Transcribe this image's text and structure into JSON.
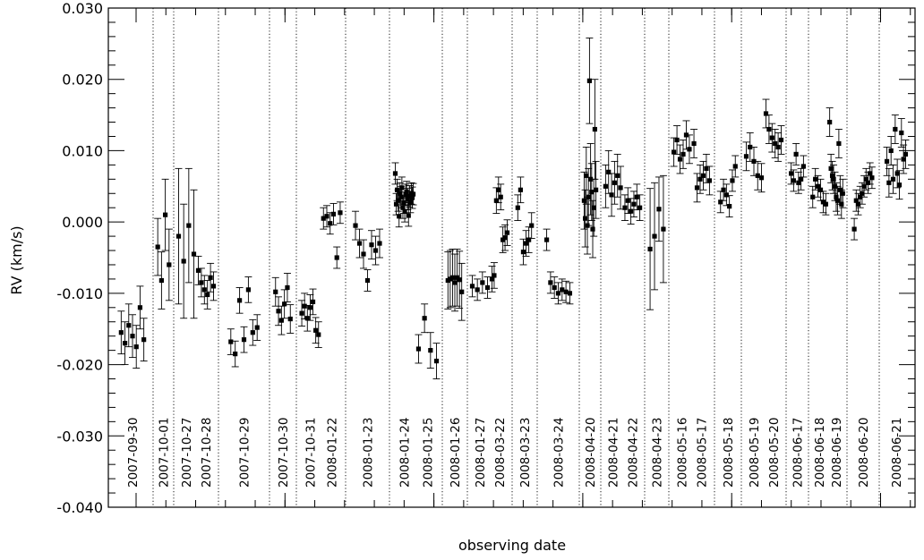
{
  "chart_data": {
    "type": "scatter",
    "xlabel": "observing date",
    "ylabel": "RV (km/s)",
    "ylim": [
      -0.04,
      0.03
    ],
    "yticks": [
      "0.030",
      "0.020",
      "0.010",
      "0.000",
      "-0.010",
      "-0.020",
      "-0.030",
      "-0.040"
    ],
    "error_bars": true,
    "grid": false,
    "nights": [
      {
        "date": "2007-09-30",
        "points": [
          [
            -0.0155,
            0.003
          ],
          [
            -0.017,
            0.003
          ],
          [
            -0.0145,
            0.003
          ],
          [
            -0.016,
            0.003
          ],
          [
            -0.0175,
            0.003
          ],
          [
            -0.012,
            0.003
          ],
          [
            -0.0165,
            0.003
          ]
        ]
      },
      {
        "date": "2007-10-01",
        "points": [
          [
            -0.0035,
            0.004
          ],
          [
            -0.0082,
            0.004
          ],
          [
            0.001,
            0.005
          ],
          [
            -0.006,
            0.005
          ]
        ]
      },
      {
        "date": "2007-10-27",
        "points": [
          [
            -0.002,
            0.0095
          ],
          [
            -0.0055,
            0.008
          ],
          [
            -0.0005,
            0.008
          ],
          [
            -0.0045,
            0.009
          ]
        ]
      },
      {
        "date": "2007-10-28",
        "points": [
          [
            -0.0068,
            0.002
          ],
          [
            -0.0085,
            0.002
          ],
          [
            -0.0095,
            0.002
          ],
          [
            -0.0102,
            0.002
          ],
          [
            -0.0078,
            0.002
          ],
          [
            -0.009,
            0.002
          ]
        ]
      },
      {
        "date": "2007-10-29",
        "points": [
          [
            -0.0168,
            0.0018
          ],
          [
            -0.0185,
            0.0018
          ],
          [
            -0.011,
            0.0018
          ],
          [
            -0.0165,
            0.0018
          ],
          [
            -0.0095,
            0.0018
          ],
          [
            -0.0155,
            0.0018
          ],
          [
            -0.0148,
            0.0018
          ]
        ]
      },
      {
        "date": "2007-10-30",
        "points": [
          [
            -0.0098,
            0.002
          ],
          [
            -0.0125,
            0.002
          ],
          [
            -0.0138,
            0.002
          ],
          [
            -0.0115,
            0.002
          ],
          [
            -0.0092,
            0.002
          ],
          [
            -0.0136,
            0.002
          ]
        ]
      },
      {
        "date": "2007-10-31",
        "points": [
          [
            -0.0128,
            0.0018
          ],
          [
            -0.0118,
            0.0018
          ],
          [
            -0.0135,
            0.0018
          ],
          [
            -0.012,
            0.0018
          ],
          [
            -0.0112,
            0.0018
          ],
          [
            -0.0152,
            0.0018
          ],
          [
            -0.0158,
            0.0018
          ]
        ]
      },
      {
        "date": "2008-01-22",
        "points": [
          [
            0.0005,
            0.0015
          ],
          [
            0.0008,
            0.0015
          ],
          [
            -0.0002,
            0.0015
          ],
          [
            0.0011,
            0.0015
          ],
          [
            -0.005,
            0.0015
          ],
          [
            0.0013,
            0.0015
          ]
        ]
      },
      {
        "date": "2008-01-23",
        "points": [
          [
            -0.0005,
            0.002
          ],
          [
            -0.003,
            0.002
          ],
          [
            -0.0045,
            0.002
          ],
          [
            -0.0082,
            0.0015
          ],
          [
            -0.0032,
            0.002
          ],
          [
            -0.004,
            0.002
          ],
          [
            -0.003,
            0.002
          ]
        ]
      },
      {
        "date": "2008-01-24",
        "points": [
          [
            0.0068,
            0.0015
          ],
          [
            0.0025,
            0.0015
          ],
          [
            0.0045,
            0.0015
          ],
          [
            0.003,
            0.0015
          ],
          [
            0.0008,
            0.0015
          ],
          [
            0.004,
            0.0015
          ],
          [
            0.0035,
            0.0015
          ],
          [
            0.0048,
            0.0015
          ],
          [
            0.002,
            0.0015
          ],
          [
            0.0027,
            0.0015
          ],
          [
            0.0015,
            0.0015
          ],
          [
            0.0038,
            0.0015
          ],
          [
            0.0042,
            0.0015
          ],
          [
            0.0032,
            0.0015
          ],
          [
            0.0009,
            0.0015
          ],
          [
            0.0036,
            0.0015
          ],
          [
            0.0028,
            0.0015
          ],
          [
            0.004,
            0.0015
          ],
          [
            0.0034,
            0.0015
          ],
          [
            0.0039,
            0.0015
          ]
        ]
      },
      {
        "date": "2008-01-25",
        "points": [
          [
            -0.0178,
            0.002
          ],
          [
            -0.0135,
            0.002
          ],
          [
            -0.018,
            0.0025
          ],
          [
            -0.0195,
            0.0025
          ]
        ]
      },
      {
        "date": "2008-01-26",
        "points": [
          [
            -0.0082,
            0.004
          ],
          [
            -0.008,
            0.004
          ],
          [
            -0.0078,
            0.004
          ],
          [
            -0.0085,
            0.004
          ],
          [
            -0.0078,
            0.004
          ],
          [
            -0.0081,
            0.004
          ],
          [
            -0.0098,
            0.004
          ]
        ]
      },
      {
        "date": "2008-01-27",
        "points": [
          [
            -0.009,
            0.0015
          ],
          [
            -0.0095,
            0.0015
          ],
          [
            -0.0085,
            0.0015
          ],
          [
            -0.0092,
            0.0015
          ]
        ]
      },
      {
        "date": "2008-03-22",
        "points": [
          [
            -0.008,
            0.0018
          ],
          [
            -0.0075,
            0.0018
          ],
          [
            0.003,
            0.0018
          ],
          [
            0.0045,
            0.0018
          ],
          [
            0.0035,
            0.0018
          ],
          [
            -0.0025,
            0.0018
          ],
          [
            -0.0022,
            0.0018
          ],
          [
            -0.0015,
            0.0018
          ]
        ]
      },
      {
        "date": "2008-03-23",
        "points": [
          [
            0.002,
            0.0018
          ],
          [
            0.0045,
            0.0018
          ],
          [
            -0.0042,
            0.0018
          ],
          [
            -0.003,
            0.0018
          ],
          [
            -0.0025,
            0.0018
          ],
          [
            -0.0005,
            0.0018
          ]
        ]
      },
      {
        "date": "2008-03-24",
        "points": [
          [
            -0.0025,
            0.0015
          ],
          [
            -0.0085,
            0.0015
          ],
          [
            -0.0092,
            0.0015
          ],
          [
            -0.01,
            0.0015
          ],
          [
            -0.0095,
            0.0015
          ],
          [
            -0.0098,
            0.0015
          ],
          [
            -0.01,
            0.0015
          ]
        ]
      },
      {
        "date": "2008-04-20",
        "points": [
          [
            0.003,
            0.004
          ],
          [
            0.0005,
            0.004
          ],
          [
            0.0065,
            0.004
          ],
          [
            -0.0005,
            0.004
          ],
          [
            0.0035,
            0.004
          ],
          [
            0.0198,
            0.006
          ],
          [
            0.006,
            0.005
          ],
          [
            0.0042,
            0.004
          ],
          [
            -0.001,
            0.004
          ],
          [
            0.002,
            0.004
          ],
          [
            0.013,
            0.007
          ],
          [
            0.0045,
            0.004
          ]
        ]
      },
      {
        "date": "2008-04-21",
        "points": [
          [
            0.005,
            0.003
          ],
          [
            0.007,
            0.003
          ],
          [
            0.0038,
            0.003
          ],
          [
            0.0055,
            0.003
          ],
          [
            0.0065,
            0.003
          ],
          [
            0.0048,
            0.003
          ]
        ]
      },
      {
        "date": "2008-04-22",
        "points": [
          [
            0.002,
            0.0018
          ],
          [
            0.003,
            0.0018
          ],
          [
            0.0015,
            0.0018
          ],
          [
            0.0025,
            0.0018
          ],
          [
            0.0035,
            0.0018
          ],
          [
            0.002,
            0.0018
          ]
        ]
      },
      {
        "date": "2008-04-23",
        "points": [
          [
            -0.0038,
            0.0085
          ],
          [
            -0.002,
            0.0075
          ],
          [
            0.0018,
            0.0045
          ],
          [
            -0.001,
            0.0075
          ]
        ]
      },
      {
        "date": "2008-05-16",
        "points": [
          [
            0.0098,
            0.002
          ],
          [
            0.0115,
            0.002
          ],
          [
            0.0088,
            0.002
          ],
          [
            0.0095,
            0.002
          ],
          [
            0.0122,
            0.002
          ],
          [
            0.0102,
            0.002
          ]
        ]
      },
      {
        "date": "2008-05-17",
        "points": [
          [
            0.011,
            0.002
          ],
          [
            0.0048,
            0.002
          ],
          [
            0.006,
            0.002
          ],
          [
            0.0065,
            0.002
          ],
          [
            0.0075,
            0.002
          ],
          [
            0.0058,
            0.002
          ]
        ]
      },
      {
        "date": "2008-05-18",
        "points": [
          [
            0.0028,
            0.0015
          ],
          [
            0.0045,
            0.0015
          ],
          [
            0.0038,
            0.0015
          ],
          [
            0.0022,
            0.0015
          ],
          [
            0.0058,
            0.0015
          ],
          [
            0.0078,
            0.0015
          ]
        ]
      },
      {
        "date": "2008-05-19",
        "points": [
          [
            0.0092,
            0.002
          ],
          [
            0.0105,
            0.002
          ],
          [
            0.0085,
            0.002
          ],
          [
            0.0065,
            0.002
          ],
          [
            0.0062,
            0.002
          ]
        ]
      },
      {
        "date": "2008-05-20",
        "points": [
          [
            0.0152,
            0.002
          ],
          [
            0.013,
            0.002
          ],
          [
            0.0118,
            0.002
          ],
          [
            0.011,
            0.002
          ],
          [
            0.0105,
            0.002
          ],
          [
            0.0115,
            0.002
          ]
        ]
      },
      {
        "date": "2008-06-17",
        "points": [
          [
            0.0068,
            0.0015
          ],
          [
            0.0058,
            0.0015
          ],
          [
            0.0095,
            0.0015
          ],
          [
            0.0055,
            0.0015
          ],
          [
            0.006,
            0.0015
          ],
          [
            0.0078,
            0.0015
          ]
        ]
      },
      {
        "date": "2008-06-18",
        "points": [
          [
            0.0035,
            0.0015
          ],
          [
            0.006,
            0.0015
          ],
          [
            0.005,
            0.0015
          ],
          [
            0.0045,
            0.0015
          ],
          [
            0.0028,
            0.0015
          ],
          [
            0.0025,
            0.0015
          ]
        ]
      },
      {
        "date": "2008-06-19",
        "points": [
          [
            0.014,
            0.002
          ],
          [
            0.0075,
            0.002
          ],
          [
            0.0065,
            0.002
          ],
          [
            0.006,
            0.002
          ],
          [
            0.005,
            0.002
          ],
          [
            0.0035,
            0.002
          ],
          [
            0.003,
            0.002
          ],
          [
            0.011,
            0.002
          ],
          [
            0.0045,
            0.002
          ],
          [
            0.0025,
            0.002
          ],
          [
            0.004,
            0.002
          ]
        ]
      },
      {
        "date": "2008-06-20",
        "points": [
          [
            -0.001,
            0.0015
          ],
          [
            0.003,
            0.0015
          ],
          [
            0.0025,
            0.0015
          ],
          [
            0.0035,
            0.0015
          ],
          [
            0.004,
            0.0015
          ],
          [
            0.005,
            0.0015
          ],
          [
            0.006,
            0.0015
          ],
          [
            0.0055,
            0.0015
          ],
          [
            0.0068,
            0.0015
          ],
          [
            0.0062,
            0.0015
          ]
        ]
      },
      {
        "date": "2008-06-21",
        "points": [
          [
            0.0085,
            0.002
          ],
          [
            0.0055,
            0.002
          ],
          [
            0.01,
            0.002
          ],
          [
            0.006,
            0.002
          ],
          [
            0.013,
            0.002
          ],
          [
            0.0068,
            0.002
          ],
          [
            0.0052,
            0.002
          ],
          [
            0.0125,
            0.002
          ],
          [
            0.0088,
            0.002
          ],
          [
            0.0095,
            0.002
          ]
        ]
      }
    ]
  }
}
